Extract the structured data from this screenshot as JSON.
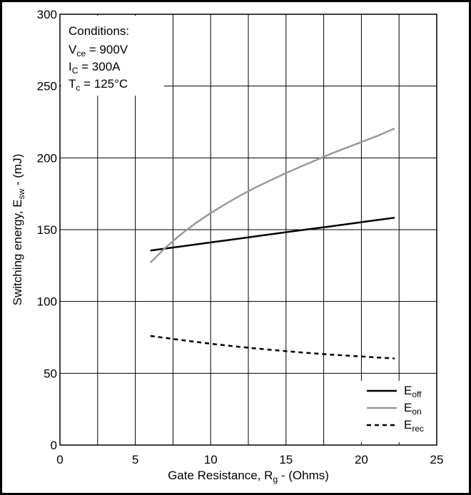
{
  "chart_data": {
    "type": "line",
    "xlabel": {
      "main": "Gate Resistance, R",
      "sub": "g",
      "tail": " - (Ohms)"
    },
    "ylabel": {
      "main": "Switching energy, E",
      "sub": "sw",
      "tail": " - (mJ)"
    },
    "xlim": [
      0,
      25
    ],
    "ylim": [
      0,
      300
    ],
    "xticks": [
      0,
      5,
      10,
      15,
      20,
      25
    ],
    "yticks": [
      0,
      50,
      100,
      150,
      200,
      250,
      300
    ],
    "x_minor_gridlines": [
      2.5,
      7.5,
      12.5,
      17.5,
      22.5
    ],
    "grid": true,
    "legend_position": "bottom-right",
    "conditions": {
      "heading": "Conditions:",
      "lines": [
        {
          "main": "V",
          "sub": "ce",
          "tail": " = 900V"
        },
        {
          "main": "I",
          "sub": "C",
          "tail": " = 300A"
        },
        {
          "main": "T",
          "sub": "c",
          "tail": " = 125°C"
        }
      ]
    },
    "series": [
      {
        "name": "E",
        "sub": "off",
        "color": "#000000",
        "dash": "none",
        "x": [
          6,
          8,
          10,
          12,
          14,
          16,
          18,
          20,
          22.2
        ],
        "y": [
          135.5,
          138.3,
          141.1,
          143.9,
          146.8,
          149.6,
          152.4,
          155.2,
          158.3
        ]
      },
      {
        "name": "E",
        "sub": "on",
        "color": "#999999",
        "dash": "none",
        "x": [
          6,
          7,
          8,
          9,
          10,
          11,
          12,
          13,
          14,
          15,
          16,
          17,
          18,
          19,
          20,
          21,
          22.2
        ],
        "y": [
          127,
          137.5,
          146.5,
          154.5,
          161.5,
          168,
          174,
          179.5,
          184.5,
          189.5,
          194,
          198.5,
          203,
          207,
          211,
          215,
          220.5
        ]
      },
      {
        "name": "E",
        "sub": "rec",
        "color": "#000000",
        "dash": "6,5",
        "x": [
          6,
          8,
          10,
          12,
          14,
          16,
          18,
          20,
          22.2
        ],
        "y": [
          76,
          73.2,
          70.6,
          68.3,
          66.3,
          64.5,
          63,
          61.7,
          60.3
        ]
      }
    ]
  }
}
